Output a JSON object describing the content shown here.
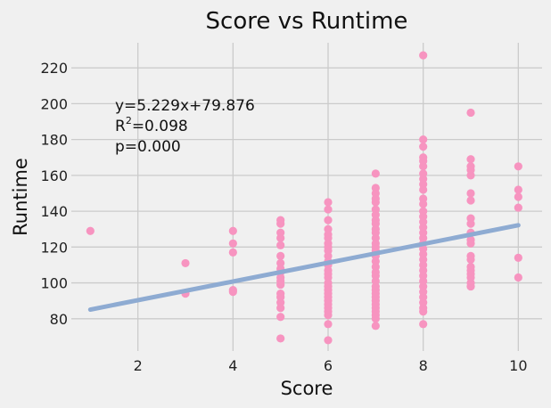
{
  "chart_data": {
    "type": "scatter",
    "title": "Score vs Runtime",
    "xlabel": "Score",
    "ylabel": "Runtime",
    "xlim": [
      0.6,
      10.5
    ],
    "ylim": [
      62,
      234
    ],
    "xticks": [
      2,
      4,
      6,
      8,
      10
    ],
    "yticks": [
      80,
      100,
      120,
      140,
      160,
      180,
      200,
      220
    ],
    "grid": true,
    "points": [
      [
        1,
        129
      ],
      [
        3,
        111
      ],
      [
        3,
        94
      ],
      [
        4,
        129
      ],
      [
        4,
        122
      ],
      [
        4,
        117
      ],
      [
        4,
        96
      ],
      [
        4,
        95
      ],
      [
        5,
        135
      ],
      [
        5,
        133
      ],
      [
        5,
        128
      ],
      [
        5,
        125
      ],
      [
        5,
        121
      ],
      [
        5,
        115
      ],
      [
        5,
        111
      ],
      [
        5,
        108
      ],
      [
        5,
        106
      ],
      [
        5,
        103
      ],
      [
        5,
        101
      ],
      [
        5,
        99
      ],
      [
        5,
        94
      ],
      [
        5,
        92
      ],
      [
        5,
        89
      ],
      [
        5,
        86
      ],
      [
        5,
        81
      ],
      [
        5,
        69
      ],
      [
        6,
        145
      ],
      [
        6,
        141
      ],
      [
        6,
        135
      ],
      [
        6,
        130
      ],
      [
        6,
        127
      ],
      [
        6,
        125
      ],
      [
        6,
        122
      ],
      [
        6,
        120
      ],
      [
        6,
        118
      ],
      [
        6,
        115
      ],
      [
        6,
        112
      ],
      [
        6,
        110
      ],
      [
        6,
        107
      ],
      [
        6,
        105
      ],
      [
        6,
        103
      ],
      [
        6,
        100
      ],
      [
        6,
        98
      ],
      [
        6,
        96
      ],
      [
        6,
        94
      ],
      [
        6,
        92
      ],
      [
        6,
        90
      ],
      [
        6,
        88
      ],
      [
        6,
        86
      ],
      [
        6,
        84
      ],
      [
        6,
        82
      ],
      [
        6,
        77
      ],
      [
        6,
        68
      ],
      [
        7,
        161
      ],
      [
        7,
        153
      ],
      [
        7,
        150
      ],
      [
        7,
        147
      ],
      [
        7,
        145
      ],
      [
        7,
        141
      ],
      [
        7,
        138
      ],
      [
        7,
        135
      ],
      [
        7,
        133
      ],
      [
        7,
        130
      ],
      [
        7,
        128
      ],
      [
        7,
        125
      ],
      [
        7,
        122
      ],
      [
        7,
        120
      ],
      [
        7,
        118
      ],
      [
        7,
        115
      ],
      [
        7,
        112
      ],
      [
        7,
        109
      ],
      [
        7,
        106
      ],
      [
        7,
        104
      ],
      [
        7,
        101
      ],
      [
        7,
        98
      ],
      [
        7,
        96
      ],
      [
        7,
        94
      ],
      [
        7,
        92
      ],
      [
        7,
        90
      ],
      [
        7,
        88
      ],
      [
        7,
        86
      ],
      [
        7,
        84
      ],
      [
        7,
        82
      ],
      [
        7,
        80
      ],
      [
        7,
        76
      ],
      [
        8,
        227
      ],
      [
        8,
        180
      ],
      [
        8,
        176
      ],
      [
        8,
        170
      ],
      [
        8,
        168
      ],
      [
        8,
        165
      ],
      [
        8,
        161
      ],
      [
        8,
        158
      ],
      [
        8,
        155
      ],
      [
        8,
        152
      ],
      [
        8,
        147
      ],
      [
        8,
        144
      ],
      [
        8,
        140
      ],
      [
        8,
        137
      ],
      [
        8,
        134
      ],
      [
        8,
        131
      ],
      [
        8,
        128
      ],
      [
        8,
        125
      ],
      [
        8,
        122
      ],
      [
        8,
        119
      ],
      [
        8,
        116
      ],
      [
        8,
        113
      ],
      [
        8,
        110
      ],
      [
        8,
        107
      ],
      [
        8,
        104
      ],
      [
        8,
        101
      ],
      [
        8,
        98
      ],
      [
        8,
        95
      ],
      [
        8,
        92
      ],
      [
        8,
        89
      ],
      [
        8,
        86
      ],
      [
        8,
        84
      ],
      [
        8,
        77
      ],
      [
        9,
        195
      ],
      [
        9,
        169
      ],
      [
        9,
        165
      ],
      [
        9,
        163
      ],
      [
        9,
        160
      ],
      [
        9,
        150
      ],
      [
        9,
        146
      ],
      [
        9,
        136
      ],
      [
        9,
        133
      ],
      [
        9,
        128
      ],
      [
        9,
        124
      ],
      [
        9,
        122
      ],
      [
        9,
        115
      ],
      [
        9,
        113
      ],
      [
        9,
        109
      ],
      [
        9,
        107
      ],
      [
        9,
        105
      ],
      [
        9,
        103
      ],
      [
        9,
        100
      ],
      [
        9,
        98
      ],
      [
        10,
        165
      ],
      [
        10,
        152
      ],
      [
        10,
        148
      ],
      [
        10,
        142
      ],
      [
        10,
        114
      ],
      [
        10,
        103
      ]
    ],
    "regression": {
      "slope": 5.229,
      "intercept": 79.876,
      "x_range": [
        1,
        10
      ]
    },
    "annotations": [
      "y=5.229x+79.876",
      "R",
      "2",
      "=0.098",
      "p=0.000"
    ],
    "colors": {
      "background": "#f0f0f0",
      "grid": "#cbcbcb",
      "points": "#f794c0",
      "line": "#8eabd2",
      "text": "#222222"
    }
  }
}
